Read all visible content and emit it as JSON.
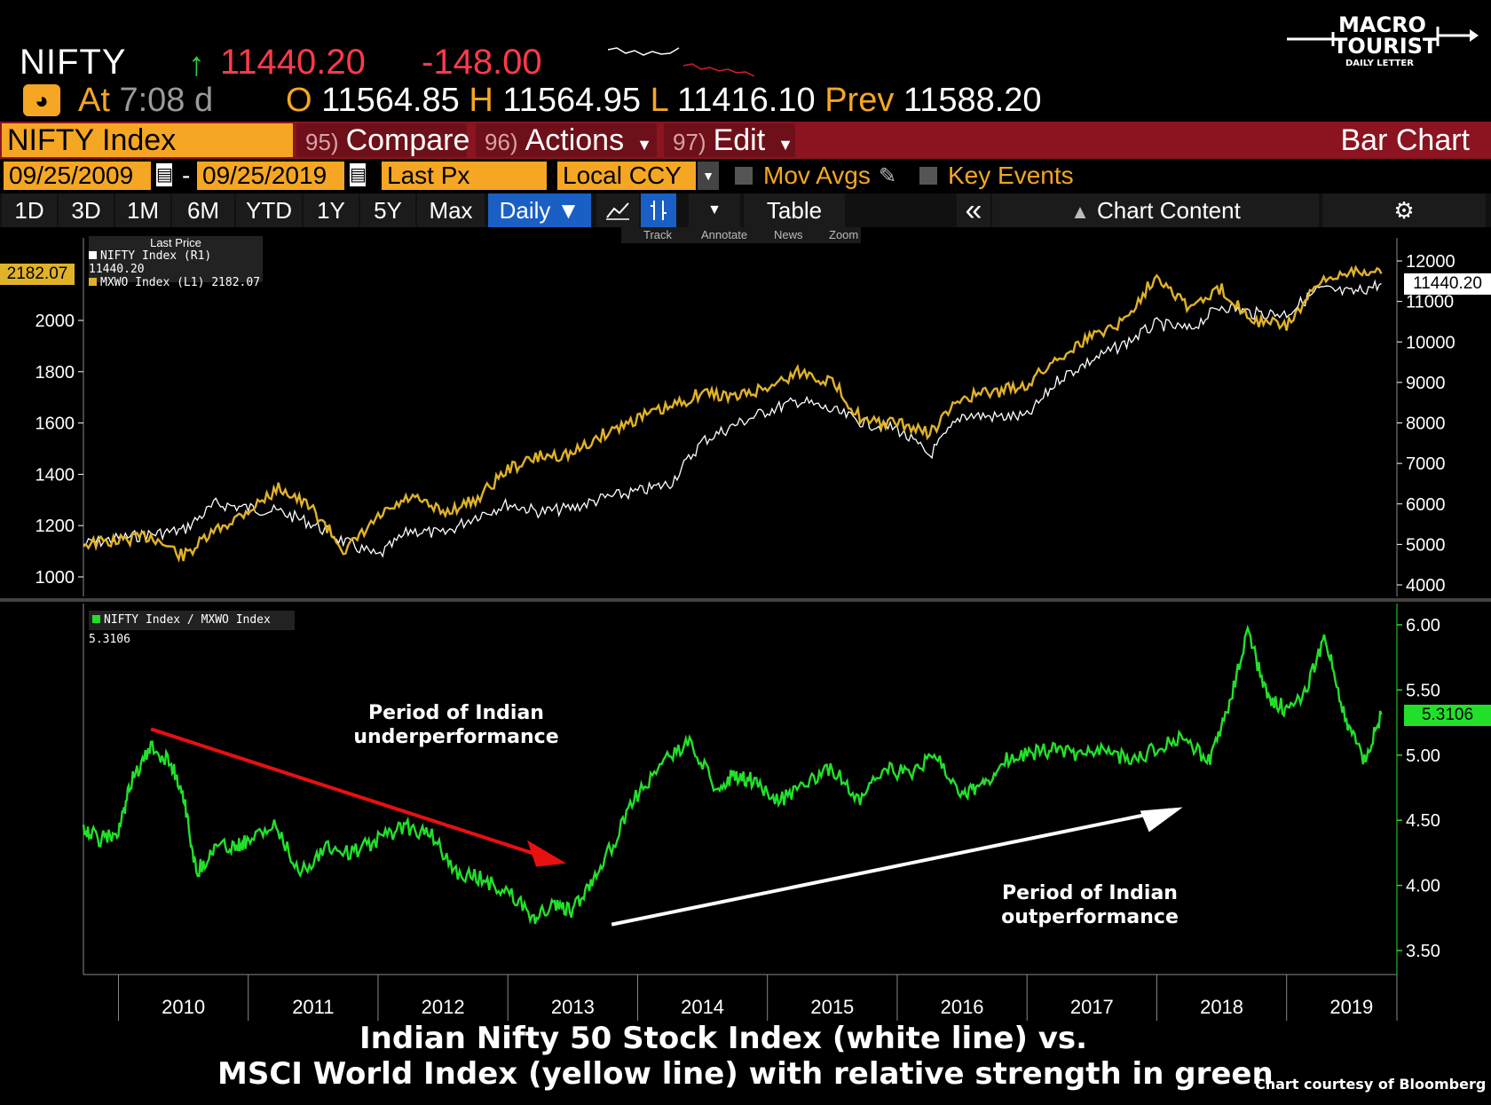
{
  "quote": {
    "ticker": "NIFTY",
    "up_arrow": "↑",
    "last": "11440.20",
    "change": "-148.00",
    "at_label": "At",
    "time": "7:08",
    "delay": "d",
    "open_label": "O",
    "open": "11564.85",
    "high_label": "H",
    "high": "11564.95",
    "low_label": "L",
    "low": "11416.10",
    "prev_label": "Prev",
    "prev": "11588.20"
  },
  "menubar": {
    "security": "NIFTY Index",
    "compare_num": "95)",
    "compare": "Compare",
    "actions_num": "96)",
    "actions": "Actions",
    "edit_num": "97)",
    "edit": "Edit",
    "chart_type": "Bar Chart"
  },
  "params": {
    "start_date": "09/25/2009",
    "dash": "-",
    "end_date": "09/25/2019",
    "field": "Last Px",
    "currency": "Local CCY",
    "mov_avgs": "Mov Avgs",
    "key_events": "Key Events"
  },
  "toolbar": {
    "ranges": [
      "1D",
      "3D",
      "1M",
      "6M",
      "YTD",
      "1Y",
      "5Y",
      "Max"
    ],
    "period": "Daily ▼",
    "table": "Table",
    "collapse": "«",
    "chart_content": "Chart Content",
    "settings_icon": "gear-icon",
    "mini": [
      "Track",
      "Annotate",
      "News",
      "Zoom"
    ]
  },
  "logo": {
    "line1": "MACRO",
    "line2": "TOURIST",
    "line3": "DAILY LETTER"
  },
  "colors": {
    "nifty": "#ffffff",
    "mxwo": "#e0b228",
    "ratio": "#22e02a",
    "amber": "#f5a623",
    "red_bar": "#8b1420"
  },
  "chart_data": [
    {
      "type": "line",
      "title": "",
      "legend_header": "Last Price",
      "x": [
        2009.73,
        2010.0,
        2010.25,
        2010.5,
        2010.75,
        2011.0,
        2011.25,
        2011.5,
        2011.75,
        2012.0,
        2012.25,
        2012.5,
        2012.75,
        2013.0,
        2013.25,
        2013.5,
        2013.75,
        2014.0,
        2014.25,
        2014.5,
        2014.75,
        2015.0,
        2015.25,
        2015.5,
        2015.75,
        2016.0,
        2016.25,
        2016.5,
        2016.75,
        2017.0,
        2017.25,
        2017.5,
        2017.75,
        2018.0,
        2018.25,
        2018.5,
        2018.75,
        2019.0,
        2019.25,
        2019.5,
        2019.73
      ],
      "series": [
        {
          "name": "NIFTY Index (R1)",
          "legend_value": "11440.20",
          "axis": "right",
          "values": [
            5000,
            5150,
            5250,
            5350,
            6000,
            5900,
            5800,
            5500,
            5050,
            4700,
            5350,
            5250,
            5700,
            6000,
            5800,
            5900,
            6150,
            6300,
            6500,
            7550,
            7950,
            8300,
            8550,
            8300,
            8000,
            7850,
            7200,
            8200,
            8150,
            8150,
            9100,
            9550,
            9950,
            10450,
            10300,
            10900,
            10700,
            10700,
            11300,
            11200,
            11440.2
          ]
        },
        {
          "name": "MXWO Index (L1)",
          "legend_value": "2182.07",
          "axis": "left",
          "values": [
            1130,
            1140,
            1160,
            1080,
            1180,
            1260,
            1350,
            1260,
            1100,
            1230,
            1310,
            1250,
            1300,
            1420,
            1470,
            1480,
            1560,
            1620,
            1660,
            1720,
            1700,
            1740,
            1800,
            1760,
            1600,
            1600,
            1560,
            1700,
            1720,
            1750,
            1860,
            1940,
            2000,
            2180,
            2050,
            2120,
            2000,
            1980,
            2140,
            2200,
            2182.07
          ]
        }
      ],
      "left_axis": {
        "ticks": [
          1000,
          1200,
          1400,
          1600,
          1800,
          2000
        ],
        "last_label": "2182.07"
      },
      "right_axis": {
        "ticks": [
          4000,
          5000,
          6000,
          7000,
          8000,
          9000,
          10000,
          11000,
          12000
        ],
        "last_label": "11440.20"
      }
    },
    {
      "type": "line",
      "title": "",
      "x": [
        2009.73,
        2009.85,
        2010.0,
        2010.1,
        2010.25,
        2010.4,
        2010.5,
        2010.6,
        2010.75,
        2010.9,
        2011.0,
        2011.2,
        2011.4,
        2011.6,
        2011.8,
        2012.0,
        2012.2,
        2012.4,
        2012.6,
        2012.8,
        2013.0,
        2013.2,
        2013.35,
        2013.5,
        2013.65,
        2013.8,
        2014.0,
        2014.2,
        2014.4,
        2014.6,
        2014.75,
        2014.9,
        2015.1,
        2015.3,
        2015.5,
        2015.7,
        2015.9,
        2016.1,
        2016.3,
        2016.5,
        2016.65,
        2016.8,
        2017.0,
        2017.2,
        2017.4,
        2017.6,
        2017.8,
        2018.0,
        2018.2,
        2018.4,
        2018.55,
        2018.7,
        2018.85,
        2019.0,
        2019.15,
        2019.3,
        2019.45,
        2019.6,
        2019.73
      ],
      "series": [
        {
          "name": "NIFTY Index / MXWO Index",
          "legend_value": "5.3106",
          "values": [
            4.45,
            4.35,
            4.4,
            4.8,
            5.05,
            4.95,
            4.7,
            4.1,
            4.3,
            4.3,
            4.35,
            4.45,
            4.1,
            4.3,
            4.25,
            4.35,
            4.45,
            4.4,
            4.1,
            4.05,
            3.95,
            3.75,
            3.85,
            3.8,
            4.05,
            4.3,
            4.7,
            4.95,
            5.1,
            4.75,
            4.85,
            4.8,
            4.65,
            4.8,
            4.9,
            4.65,
            4.9,
            4.85,
            5.0,
            4.7,
            4.75,
            4.95,
            5.0,
            5.05,
            5.0,
            5.05,
            4.95,
            5.05,
            5.15,
            4.95,
            5.35,
            5.95,
            5.45,
            5.35,
            5.5,
            5.9,
            5.3,
            4.95,
            5.3106
          ]
        }
      ],
      "right_axis": {
        "ticks": [
          3.5,
          4.0,
          4.5,
          5.0,
          5.5,
          6.0
        ],
        "last_label": "5.3106"
      },
      "annotations": [
        {
          "text": [
            "Period of Indian",
            "underperformance"
          ],
          "arrow": "red"
        },
        {
          "text": [
            "Period of Indian",
            "outperformance"
          ],
          "arrow": "white"
        }
      ]
    }
  ],
  "x_axis": {
    "years": [
      "2010",
      "2011",
      "2012",
      "2013",
      "2014",
      "2015",
      "2016",
      "2017",
      "2018",
      "2019"
    ]
  },
  "caption": {
    "line1": "Indian Nifty 50 Stock Index (white line) vs.",
    "line2": "MSCI World Index (yellow line) with relative strength in green",
    "credit": "Chart courtesy of Bloomberg"
  }
}
